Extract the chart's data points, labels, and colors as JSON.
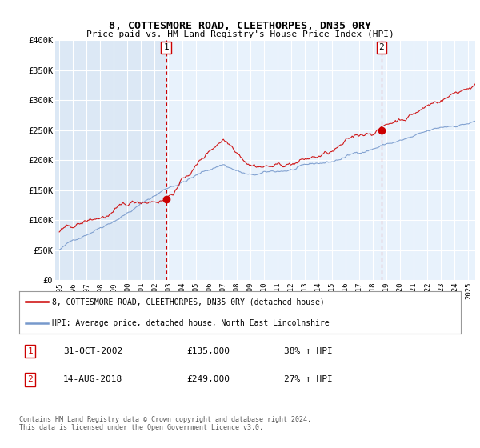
{
  "title": "8, COTTESMORE ROAD, CLEETHORPES, DN35 0RY",
  "subtitle": "Price paid vs. HM Land Registry's House Price Index (HPI)",
  "ylabel_ticks": [
    "£0",
    "£50K",
    "£100K",
    "£150K",
    "£200K",
    "£250K",
    "£300K",
    "£350K",
    "£400K"
  ],
  "ylim": [
    0,
    400000
  ],
  "xlim_start": 1995.0,
  "xlim_end": 2025.5,
  "sale1_date": 2002.83,
  "sale1_label": "1",
  "sale1_price": 135000,
  "sale2_date": 2018.62,
  "sale2_label": "2",
  "sale2_price": 249000,
  "red_line_color": "#cc0000",
  "blue_line_color": "#7799cc",
  "sale_dot_color": "#cc0000",
  "marker_box_edge": "#cc0000",
  "marker_text_color": "#000000",
  "bg_color_left": "#dce8f5",
  "bg_color_right": "#e8f2fc",
  "grid_color": "#ffffff",
  "legend_line1": "8, COTTESMORE ROAD, CLEETHORPES, DN35 0RY (detached house)",
  "legend_line2": "HPI: Average price, detached house, North East Lincolnshire",
  "table_row1": [
    "1",
    "31-OCT-2002",
    "£135,000",
    "38% ↑ HPI"
  ],
  "table_row2": [
    "2",
    "14-AUG-2018",
    "£249,000",
    "27% ↑ HPI"
  ],
  "footer": "Contains HM Land Registry data © Crown copyright and database right 2024.\nThis data is licensed under the Open Government Licence v3.0."
}
